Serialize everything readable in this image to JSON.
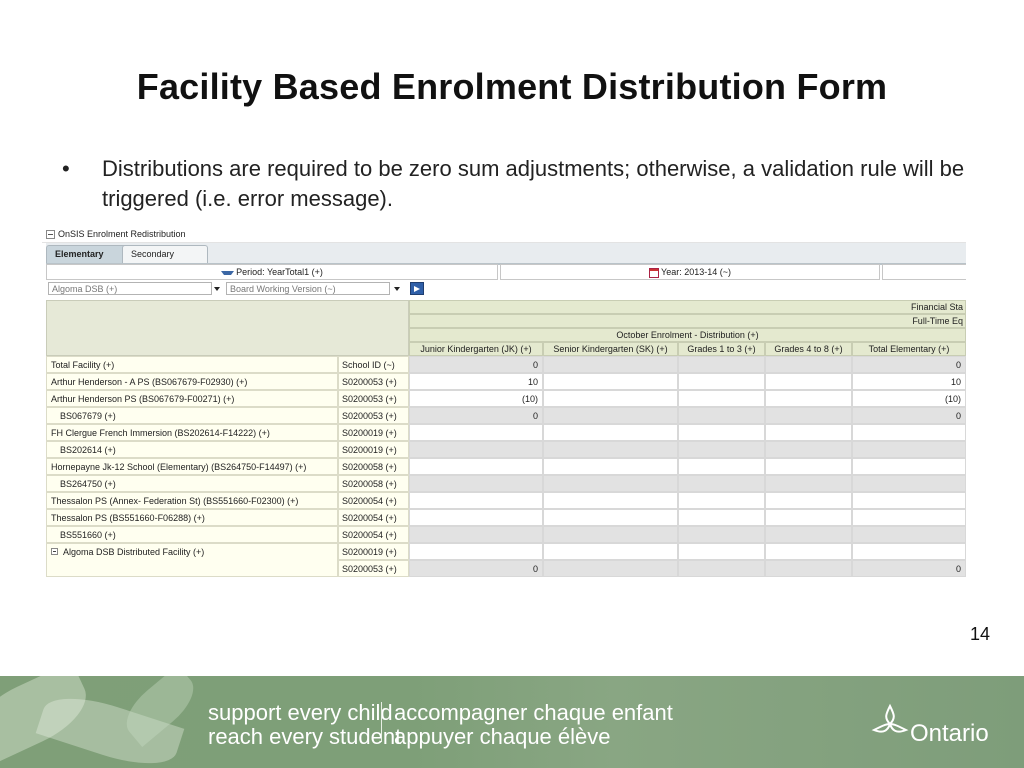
{
  "slide": {
    "title": "Facility Based Enrolment Distribution Form",
    "bullet_char": "•",
    "bullet_text": "Distributions are required to be zero sum adjustments; otherwise, a validation rule will be triggered (i.e. error message).",
    "page_number": "14"
  },
  "app": {
    "header_label": "OnSIS Enrolment Redistribution",
    "tabs": [
      "Elementary",
      "Secondary"
    ],
    "active_tab": "Elementary",
    "period_label": "Period: YearTotal1 (+)",
    "year_label": "Year: 2013-14 (~)",
    "board_select": "Algoma DSB (+)",
    "version_select": "Board Working Version (~)"
  },
  "grid": {
    "header_financial": "Financial Sta",
    "header_fte": "Full-Time Eq",
    "header_group": "October Enrolment - Distribution (+)",
    "school_id_header": "School ID (~)",
    "columns": [
      "Junior Kindergarten (JK) (+)",
      "Senior Kindergarten (SK) (+)",
      "Grades 1 to 3 (+)",
      "Grades 4 to 8 (+)",
      "Total Elementary (+)"
    ],
    "rows": [
      {
        "facility": "Total Facility (+)",
        "school": "School ID (~)",
        "jk": "0",
        "sk": "",
        "g13": "",
        "g48": "",
        "total": "0",
        "indent": false,
        "shade": "gray"
      },
      {
        "facility": "Arthur Henderson - A PS (BS067679-F02930) (+)",
        "school": "S0200053 (+)",
        "jk": "10",
        "sk": "",
        "g13": "",
        "g48": "",
        "total": "10",
        "indent": false,
        "shade": "white"
      },
      {
        "facility": "Arthur Henderson PS (BS067679-F00271) (+)",
        "school": "S0200053 (+)",
        "jk": "(10)",
        "sk": "",
        "g13": "",
        "g48": "",
        "total": "(10)",
        "indent": false,
        "shade": "white"
      },
      {
        "facility": "BS067679 (+)",
        "school": "S0200053 (+)",
        "jk": "0",
        "sk": "",
        "g13": "",
        "g48": "",
        "total": "0",
        "indent": true,
        "shade": "gray"
      },
      {
        "facility": "FH Clergue French Immersion (BS202614-F14222) (+)",
        "school": "S0200019 (+)",
        "jk": "",
        "sk": "",
        "g13": "",
        "g48": "",
        "total": "",
        "indent": false,
        "shade": "white"
      },
      {
        "facility": "BS202614 (+)",
        "school": "S0200019 (+)",
        "jk": "",
        "sk": "",
        "g13": "",
        "g48": "",
        "total": "",
        "indent": true,
        "shade": "gray"
      },
      {
        "facility": "Hornepayne Jk-12 School (Elementary) (BS264750-F14497) (+)",
        "school": "S0200058 (+)",
        "jk": "",
        "sk": "",
        "g13": "",
        "g48": "",
        "total": "",
        "indent": false,
        "shade": "white"
      },
      {
        "facility": "BS264750 (+)",
        "school": "S0200058 (+)",
        "jk": "",
        "sk": "",
        "g13": "",
        "g48": "",
        "total": "",
        "indent": true,
        "shade": "gray"
      },
      {
        "facility": "Thessalon PS (Annex- Federation St) (BS551660-F02300) (+)",
        "school": "S0200054 (+)",
        "jk": "",
        "sk": "",
        "g13": "",
        "g48": "",
        "total": "",
        "indent": false,
        "shade": "white"
      },
      {
        "facility": "Thessalon PS (BS551660-F06288) (+)",
        "school": "S0200054 (+)",
        "jk": "",
        "sk": "",
        "g13": "",
        "g48": "",
        "total": "",
        "indent": false,
        "shade": "white"
      },
      {
        "facility": "BS551660 (+)",
        "school": "S0200054 (+)",
        "jk": "",
        "sk": "",
        "g13": "",
        "g48": "",
        "total": "",
        "indent": true,
        "shade": "gray"
      },
      {
        "facility": "Algoma DSB Distributed Facility (+)",
        "school": "S0200019 (+)",
        "jk": "",
        "sk": "",
        "g13": "",
        "g48": "",
        "total": "",
        "indent": false,
        "shade": "white",
        "expander": true
      },
      {
        "facility": "",
        "school": "S0200053 (+)",
        "jk": "0",
        "sk": "",
        "g13": "",
        "g48": "",
        "total": "0",
        "indent": false,
        "shade": "gray"
      }
    ]
  },
  "footer": {
    "line1_en": "support every child",
    "line2_en": "reach every student",
    "line1_fr": "accompagner chaque enfant",
    "line2_fr": "appuyer chaque élève",
    "logo_text": "Ontario"
  }
}
